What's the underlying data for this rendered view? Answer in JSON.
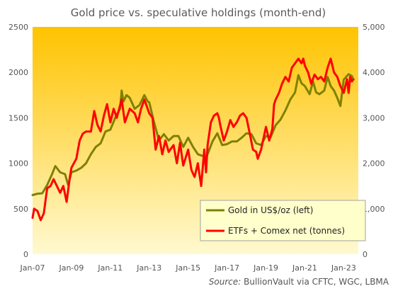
{
  "chart_data": {
    "type": "line",
    "title": "Gold price vs. speculative holdings (month-end)",
    "source_label": "Source:",
    "source_text": " BullionVault via CFTC, WGC, LBMA",
    "x_ticks": [
      "Jan-07",
      "Jan-09",
      "Jan-11",
      "Jan-13",
      "Jan-15",
      "Jan-17",
      "Jan-19",
      "Jan-21",
      "Jan-23"
    ],
    "x_range": [
      2007.0,
      2023.75
    ],
    "y_left": {
      "range": [
        0,
        2500
      ],
      "ticks": [
        "0",
        "500",
        "1000",
        "1500",
        "2000",
        "2500"
      ]
    },
    "y_right": {
      "range": [
        0,
        5000
      ],
      "ticks": [
        "0",
        "1,000",
        "2,000",
        "3,000",
        "4,000",
        "5,000"
      ]
    },
    "grid": false,
    "legend_position": "bottom-right",
    "colors": {
      "background_top": "#ffc300",
      "background_bottom": "#fff9d0"
    },
    "series": [
      {
        "name": "Gold in US$/oz (left)",
        "axis": "left",
        "color": "#808000",
        "points": [
          [
            2007.0,
            650
          ],
          [
            2007.25,
            665
          ],
          [
            2007.5,
            670
          ],
          [
            2007.75,
            760
          ],
          [
            2008.0,
            880
          ],
          [
            2008.17,
            970
          ],
          [
            2008.42,
            900
          ],
          [
            2008.67,
            880
          ],
          [
            2008.83,
            760
          ],
          [
            2009.0,
            900
          ],
          [
            2009.25,
            920
          ],
          [
            2009.5,
            950
          ],
          [
            2009.75,
            1000
          ],
          [
            2010.0,
            1100
          ],
          [
            2010.25,
            1180
          ],
          [
            2010.5,
            1220
          ],
          [
            2010.75,
            1350
          ],
          [
            2011.0,
            1370
          ],
          [
            2011.25,
            1500
          ],
          [
            2011.5,
            1600
          ],
          [
            2011.58,
            1800
          ],
          [
            2011.67,
            1680
          ],
          [
            2011.83,
            1750
          ],
          [
            2012.0,
            1720
          ],
          [
            2012.25,
            1600
          ],
          [
            2012.5,
            1640
          ],
          [
            2012.75,
            1750
          ],
          [
            2012.92,
            1680
          ],
          [
            2013.0,
            1670
          ],
          [
            2013.25,
            1450
          ],
          [
            2013.5,
            1250
          ],
          [
            2013.75,
            1320
          ],
          [
            2014.0,
            1250
          ],
          [
            2014.25,
            1300
          ],
          [
            2014.5,
            1300
          ],
          [
            2014.75,
            1180
          ],
          [
            2015.0,
            1280
          ],
          [
            2015.25,
            1180
          ],
          [
            2015.5,
            1100
          ],
          [
            2015.75,
            1080
          ],
          [
            2015.92,
            1060
          ],
          [
            2016.0,
            1100
          ],
          [
            2016.25,
            1240
          ],
          [
            2016.5,
            1330
          ],
          [
            2016.75,
            1200
          ],
          [
            2017.0,
            1210
          ],
          [
            2017.25,
            1240
          ],
          [
            2017.5,
            1240
          ],
          [
            2017.75,
            1280
          ],
          [
            2018.0,
            1330
          ],
          [
            2018.25,
            1320
          ],
          [
            2018.5,
            1220
          ],
          [
            2018.75,
            1200
          ],
          [
            2019.0,
            1300
          ],
          [
            2019.25,
            1290
          ],
          [
            2019.5,
            1420
          ],
          [
            2019.75,
            1480
          ],
          [
            2020.0,
            1580
          ],
          [
            2020.25,
            1700
          ],
          [
            2020.5,
            1780
          ],
          [
            2020.67,
            1970
          ],
          [
            2020.83,
            1880
          ],
          [
            2021.0,
            1850
          ],
          [
            2021.25,
            1760
          ],
          [
            2021.42,
            1900
          ],
          [
            2021.58,
            1780
          ],
          [
            2021.75,
            1760
          ],
          [
            2022.0,
            1800
          ],
          [
            2022.17,
            1950
          ],
          [
            2022.33,
            1850
          ],
          [
            2022.5,
            1800
          ],
          [
            2022.67,
            1720
          ],
          [
            2022.83,
            1630
          ],
          [
            2023.0,
            1920
          ],
          [
            2023.25,
            1980
          ],
          [
            2023.42,
            1960
          ],
          [
            2023.5,
            1920
          ]
        ]
      },
      {
        "name": "ETFs + Comex net (tonnes)",
        "axis": "right",
        "color": "#ff0000",
        "points": [
          [
            2007.0,
            800
          ],
          [
            2007.08,
            1000
          ],
          [
            2007.25,
            950
          ],
          [
            2007.42,
            750
          ],
          [
            2007.58,
            900
          ],
          [
            2007.75,
            1450
          ],
          [
            2007.92,
            1500
          ],
          [
            2008.08,
            1650
          ],
          [
            2008.25,
            1500
          ],
          [
            2008.42,
            1350
          ],
          [
            2008.58,
            1500
          ],
          [
            2008.75,
            1150
          ],
          [
            2008.92,
            1700
          ],
          [
            2009.0,
            1900
          ],
          [
            2009.25,
            2100
          ],
          [
            2009.42,
            2500
          ],
          [
            2009.58,
            2650
          ],
          [
            2009.75,
            2700
          ],
          [
            2010.0,
            2700
          ],
          [
            2010.17,
            3150
          ],
          [
            2010.33,
            2850
          ],
          [
            2010.5,
            2700
          ],
          [
            2010.67,
            3050
          ],
          [
            2010.83,
            3300
          ],
          [
            2011.0,
            2900
          ],
          [
            2011.17,
            3200
          ],
          [
            2011.33,
            3000
          ],
          [
            2011.58,
            3400
          ],
          [
            2011.75,
            2900
          ],
          [
            2012.0,
            3200
          ],
          [
            2012.25,
            3100
          ],
          [
            2012.42,
            2900
          ],
          [
            2012.58,
            3200
          ],
          [
            2012.75,
            3400
          ],
          [
            2013.0,
            3100
          ],
          [
            2013.17,
            3000
          ],
          [
            2013.33,
            2300
          ],
          [
            2013.5,
            2600
          ],
          [
            2013.67,
            2200
          ],
          [
            2013.83,
            2500
          ],
          [
            2014.0,
            2250
          ],
          [
            2014.25,
            2400
          ],
          [
            2014.42,
            2000
          ],
          [
            2014.58,
            2450
          ],
          [
            2014.75,
            1950
          ],
          [
            2015.0,
            2300
          ],
          [
            2015.17,
            1850
          ],
          [
            2015.33,
            1700
          ],
          [
            2015.5,
            2000
          ],
          [
            2015.67,
            1500
          ],
          [
            2015.83,
            2300
          ],
          [
            2015.92,
            1800
          ],
          [
            2016.0,
            2400
          ],
          [
            2016.17,
            2900
          ],
          [
            2016.33,
            3050
          ],
          [
            2016.5,
            3100
          ],
          [
            2016.58,
            3000
          ],
          [
            2016.67,
            2800
          ],
          [
            2016.83,
            2500
          ],
          [
            2017.0,
            2700
          ],
          [
            2017.17,
            2950
          ],
          [
            2017.33,
            2800
          ],
          [
            2017.5,
            2900
          ],
          [
            2017.67,
            3050
          ],
          [
            2017.83,
            3100
          ],
          [
            2018.0,
            3000
          ],
          [
            2018.17,
            2650
          ],
          [
            2018.33,
            2300
          ],
          [
            2018.5,
            2250
          ],
          [
            2018.58,
            2100
          ],
          [
            2018.75,
            2300
          ],
          [
            2019.0,
            2800
          ],
          [
            2019.17,
            2500
          ],
          [
            2019.33,
            2750
          ],
          [
            2019.42,
            3300
          ],
          [
            2019.5,
            3400
          ],
          [
            2019.67,
            3550
          ],
          [
            2019.83,
            3750
          ],
          [
            2020.0,
            3900
          ],
          [
            2020.17,
            3800
          ],
          [
            2020.33,
            4100
          ],
          [
            2020.5,
            4200
          ],
          [
            2020.67,
            4300
          ],
          [
            2020.83,
            4200
          ],
          [
            2020.92,
            4300
          ],
          [
            2021.0,
            4150
          ],
          [
            2021.17,
            4000
          ],
          [
            2021.33,
            3750
          ],
          [
            2021.5,
            3950
          ],
          [
            2021.67,
            3850
          ],
          [
            2021.83,
            3900
          ],
          [
            2022.0,
            3800
          ],
          [
            2022.17,
            4100
          ],
          [
            2022.33,
            4300
          ],
          [
            2022.5,
            4000
          ],
          [
            2022.67,
            3900
          ],
          [
            2022.83,
            3700
          ],
          [
            2023.0,
            3550
          ],
          [
            2023.17,
            3850
          ],
          [
            2023.25,
            3550
          ],
          [
            2023.33,
            3900
          ],
          [
            2023.42,
            3800
          ],
          [
            2023.5,
            3850
          ]
        ]
      }
    ]
  }
}
